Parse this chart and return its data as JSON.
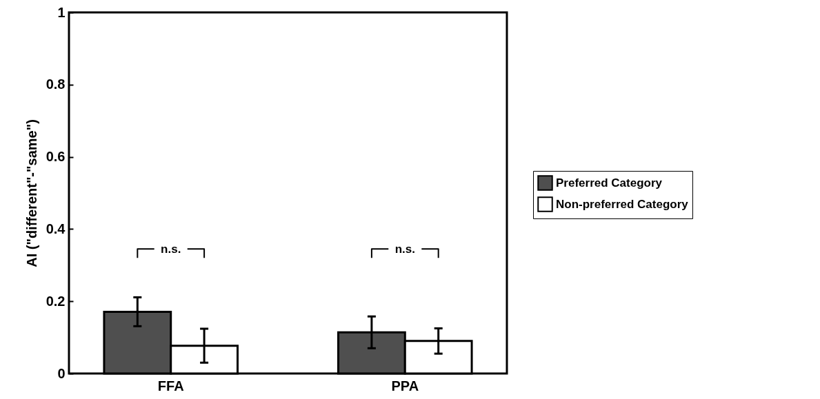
{
  "chart_data": {
    "type": "bar",
    "ylabel": "AI (\"different\"-\"same\")",
    "categories": [
      "FFA",
      "PPA"
    ],
    "series": [
      {
        "name": "Preferred Category",
        "color": "#4f4f4f",
        "values": [
          0.171,
          0.114
        ],
        "errors": [
          0.04,
          0.044
        ]
      },
      {
        "name": "Non-preferred Category",
        "color": "#ffffff",
        "values": [
          0.077,
          0.09
        ],
        "errors": [
          0.047,
          0.035
        ]
      }
    ],
    "ylim": [
      0,
      1
    ],
    "yticks": [
      0,
      0.2,
      0.4,
      0.6,
      0.8,
      1
    ],
    "legend": "right",
    "annotations": [
      "n.s.",
      "n.s."
    ]
  }
}
